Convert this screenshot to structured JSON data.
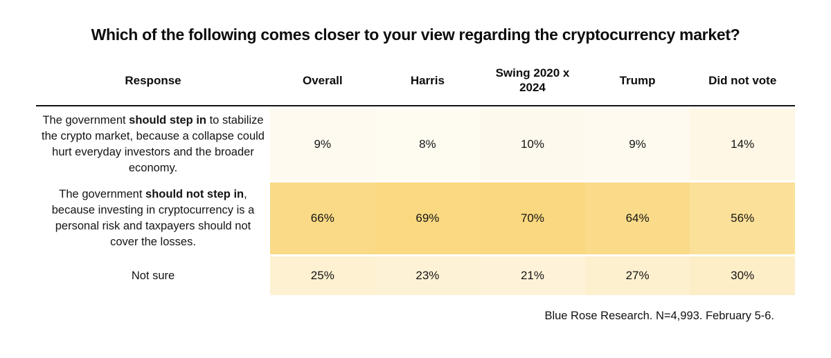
{
  "title": "Which of the following comes closer to your view regarding the cryptocurrency market?",
  "source_note": "Blue Rose Research. N=4,993. February 5-6.",
  "colors": {
    "background": "#FFFFFF",
    "text": "#111111",
    "header_rule": "#111111",
    "heat_low": "#FFFFFF",
    "heat_high": "#FAD87F"
  },
  "chart_data": {
    "type": "table",
    "title": "Which of the following comes closer to your view regarding the cryptocurrency market?",
    "columns": [
      "Response",
      "Overall",
      "Harris",
      "Swing 2020 x 2024",
      "Trump",
      "Did not vote"
    ],
    "heat_scale": {
      "min_value": 0,
      "max_value": 70,
      "low_color": "#FFFFFF",
      "high_color": "#FAD87F"
    },
    "rows": [
      {
        "label_pre": "The government ",
        "label_bold": "should step in",
        "label_post": " to stabilize the crypto market, because a collapse could hurt everyday investors and the broader economy.",
        "values": [
          9,
          8,
          10,
          9,
          14
        ],
        "display": [
          "9%",
          "8%",
          "10%",
          "9%",
          "14%"
        ]
      },
      {
        "label_pre": "The government ",
        "label_bold": "should not step in",
        "label_post": ", because investing in cryptocurrency is a personal risk and taxpayers should not cover the losses.",
        "values": [
          66,
          69,
          70,
          64,
          56
        ],
        "display": [
          "66%",
          "69%",
          "70%",
          "64%",
          "56%"
        ]
      },
      {
        "label_pre": "Not sure",
        "label_bold": "",
        "label_post": "",
        "values": [
          25,
          23,
          21,
          27,
          30
        ],
        "display": [
          "25%",
          "23%",
          "21%",
          "27%",
          "30%"
        ]
      }
    ],
    "source_note": "Blue Rose Research. N=4,993. February 5-6."
  }
}
